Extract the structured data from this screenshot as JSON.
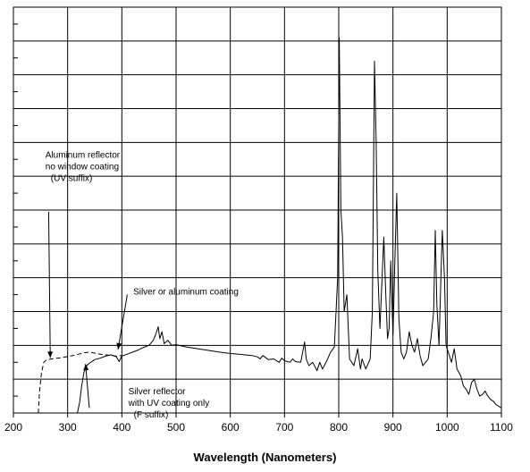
{
  "chart_data": {
    "type": "line",
    "title": "",
    "xlabel": "Wavelength (Nanometers)",
    "ylabel": "",
    "xlim": [
      200,
      1100
    ],
    "ylim": [
      0,
      12
    ],
    "x_ticks": [
      200,
      300,
      400,
      500,
      600,
      700,
      800,
      900,
      1000,
      1100
    ],
    "x_tick_labels": [
      "200",
      "300",
      "400",
      "500",
      "600",
      "700",
      "800",
      "900",
      "1000",
      "1100"
    ],
    "grid": true,
    "series": [
      {
        "style": "solid",
        "points": [
          [
            318,
            0.0
          ],
          [
            322,
            0.3
          ],
          [
            326,
            0.8
          ],
          [
            330,
            1.2
          ],
          [
            335,
            1.4
          ],
          [
            340,
            1.47
          ],
          [
            350,
            1.58
          ],
          [
            360,
            1.62
          ],
          [
            370,
            1.68
          ],
          [
            380,
            1.72
          ],
          [
            390,
            1.66
          ],
          [
            395,
            1.52
          ],
          [
            400,
            1.68
          ],
          [
            410,
            1.74
          ],
          [
            420,
            1.8
          ],
          [
            430,
            1.86
          ],
          [
            440,
            1.94
          ],
          [
            450,
            2.0
          ],
          [
            458,
            2.15
          ],
          [
            462,
            2.3
          ],
          [
            467,
            2.55
          ],
          [
            470,
            2.2
          ],
          [
            474,
            2.4
          ],
          [
            478,
            2.05
          ],
          [
            485,
            2.15
          ],
          [
            492,
            2.0
          ],
          [
            500,
            2.02
          ],
          [
            520,
            1.95
          ],
          [
            540,
            1.9
          ],
          [
            560,
            1.85
          ],
          [
            580,
            1.8
          ],
          [
            600,
            1.76
          ],
          [
            620,
            1.73
          ],
          [
            640,
            1.7
          ],
          [
            650,
            1.66
          ],
          [
            655,
            1.6
          ],
          [
            660,
            1.7
          ],
          [
            670,
            1.58
          ],
          [
            680,
            1.6
          ],
          [
            690,
            1.5
          ],
          [
            695,
            1.62
          ],
          [
            700,
            1.55
          ],
          [
            710,
            1.5
          ],
          [
            715,
            1.6
          ],
          [
            720,
            1.52
          ],
          [
            730,
            1.5
          ],
          [
            737,
            2.1
          ],
          [
            740,
            1.6
          ],
          [
            745,
            1.4
          ],
          [
            752,
            1.5
          ],
          [
            760,
            1.25
          ],
          [
            765,
            1.5
          ],
          [
            770,
            1.3
          ],
          [
            778,
            1.55
          ],
          [
            785,
            1.8
          ],
          [
            792,
            1.95
          ],
          [
            798,
            4.0
          ],
          [
            801,
            11.1
          ],
          [
            804,
            6.0
          ],
          [
            807,
            5.2
          ],
          [
            810,
            3.0
          ],
          [
            815,
            3.5
          ],
          [
            820,
            1.6
          ],
          [
            828,
            1.4
          ],
          [
            835,
            1.9
          ],
          [
            840,
            1.3
          ],
          [
            843,
            1.6
          ],
          [
            850,
            1.3
          ],
          [
            858,
            1.6
          ],
          [
            862,
            3.0
          ],
          [
            866,
            10.4
          ],
          [
            869,
            8.0
          ],
          [
            872,
            4.2
          ],
          [
            876,
            2.5
          ],
          [
            880,
            4.0
          ],
          [
            883,
            5.2
          ],
          [
            887,
            3.4
          ],
          [
            890,
            2.2
          ],
          [
            893,
            2.5
          ],
          [
            896,
            4.5
          ],
          [
            900,
            2.3
          ],
          [
            903,
            4.2
          ],
          [
            907,
            6.5
          ],
          [
            911,
            2.8
          ],
          [
            915,
            1.8
          ],
          [
            920,
            1.6
          ],
          [
            925,
            1.8
          ],
          [
            930,
            2.4
          ],
          [
            935,
            2.0
          ],
          [
            940,
            1.8
          ],
          [
            945,
            2.2
          ],
          [
            950,
            1.7
          ],
          [
            955,
            1.4
          ],
          [
            960,
            1.5
          ],
          [
            965,
            1.6
          ],
          [
            970,
            2.2
          ],
          [
            975,
            3.0
          ],
          [
            978,
            5.4
          ],
          [
            981,
            3.2
          ],
          [
            985,
            2.0
          ],
          [
            988,
            3.8
          ],
          [
            991,
            5.4
          ],
          [
            995,
            4.0
          ],
          [
            998,
            2.0
          ],
          [
            1002,
            1.8
          ],
          [
            1008,
            1.5
          ],
          [
            1013,
            1.9
          ],
          [
            1018,
            1.3
          ],
          [
            1025,
            1.1
          ],
          [
            1030,
            0.8
          ],
          [
            1035,
            0.7
          ],
          [
            1040,
            0.55
          ],
          [
            1045,
            0.9
          ],
          [
            1050,
            1.0
          ],
          [
            1055,
            0.7
          ],
          [
            1060,
            0.5
          ],
          [
            1065,
            0.55
          ],
          [
            1070,
            0.65
          ],
          [
            1075,
            0.5
          ],
          [
            1080,
            0.4
          ],
          [
            1085,
            0.35
          ],
          [
            1090,
            0.25
          ],
          [
            1095,
            0.2
          ],
          [
            1100,
            0.15
          ]
        ]
      },
      {
        "style": "dashed",
        "points": [
          [
            246,
            0.0
          ],
          [
            248,
            0.6
          ],
          [
            252,
            1.2
          ],
          [
            256,
            1.5
          ],
          [
            260,
            1.56
          ],
          [
            270,
            1.6
          ],
          [
            280,
            1.62
          ],
          [
            290,
            1.64
          ],
          [
            300,
            1.67
          ],
          [
            310,
            1.7
          ],
          [
            320,
            1.74
          ],
          [
            330,
            1.78
          ],
          [
            340,
            1.8
          ],
          [
            350,
            1.77
          ],
          [
            360,
            1.74
          ],
          [
            370,
            1.72
          ],
          [
            380,
            1.7
          ],
          [
            390,
            1.68
          ],
          [
            400,
            1.7
          ]
        ]
      }
    ],
    "annotations": [
      {
        "lines": [
          "Aluminum reflector",
          "no window coating",
          "(UV suffix)"
        ],
        "text_at": [
          259,
          7.55
        ],
        "arrow_from": [
          265,
          5.95
        ],
        "arrow_to": [
          268,
          1.63
        ]
      },
      {
        "lines": [
          "Silver or aluminum coating"
        ],
        "text_at": [
          421,
          3.5
        ],
        "arrow_from": [
          410,
          3.5
        ],
        "arrow_to": [
          393,
          1.88
        ]
      },
      {
        "lines": [
          "Silver reflector",
          "with UV coating only",
          "(F suffix)"
        ],
        "text_at": [
          412,
          0.55
        ],
        "arrow_from": [
          340,
          0.15
        ],
        "arrow_to": [
          333,
          1.45
        ]
      }
    ]
  }
}
